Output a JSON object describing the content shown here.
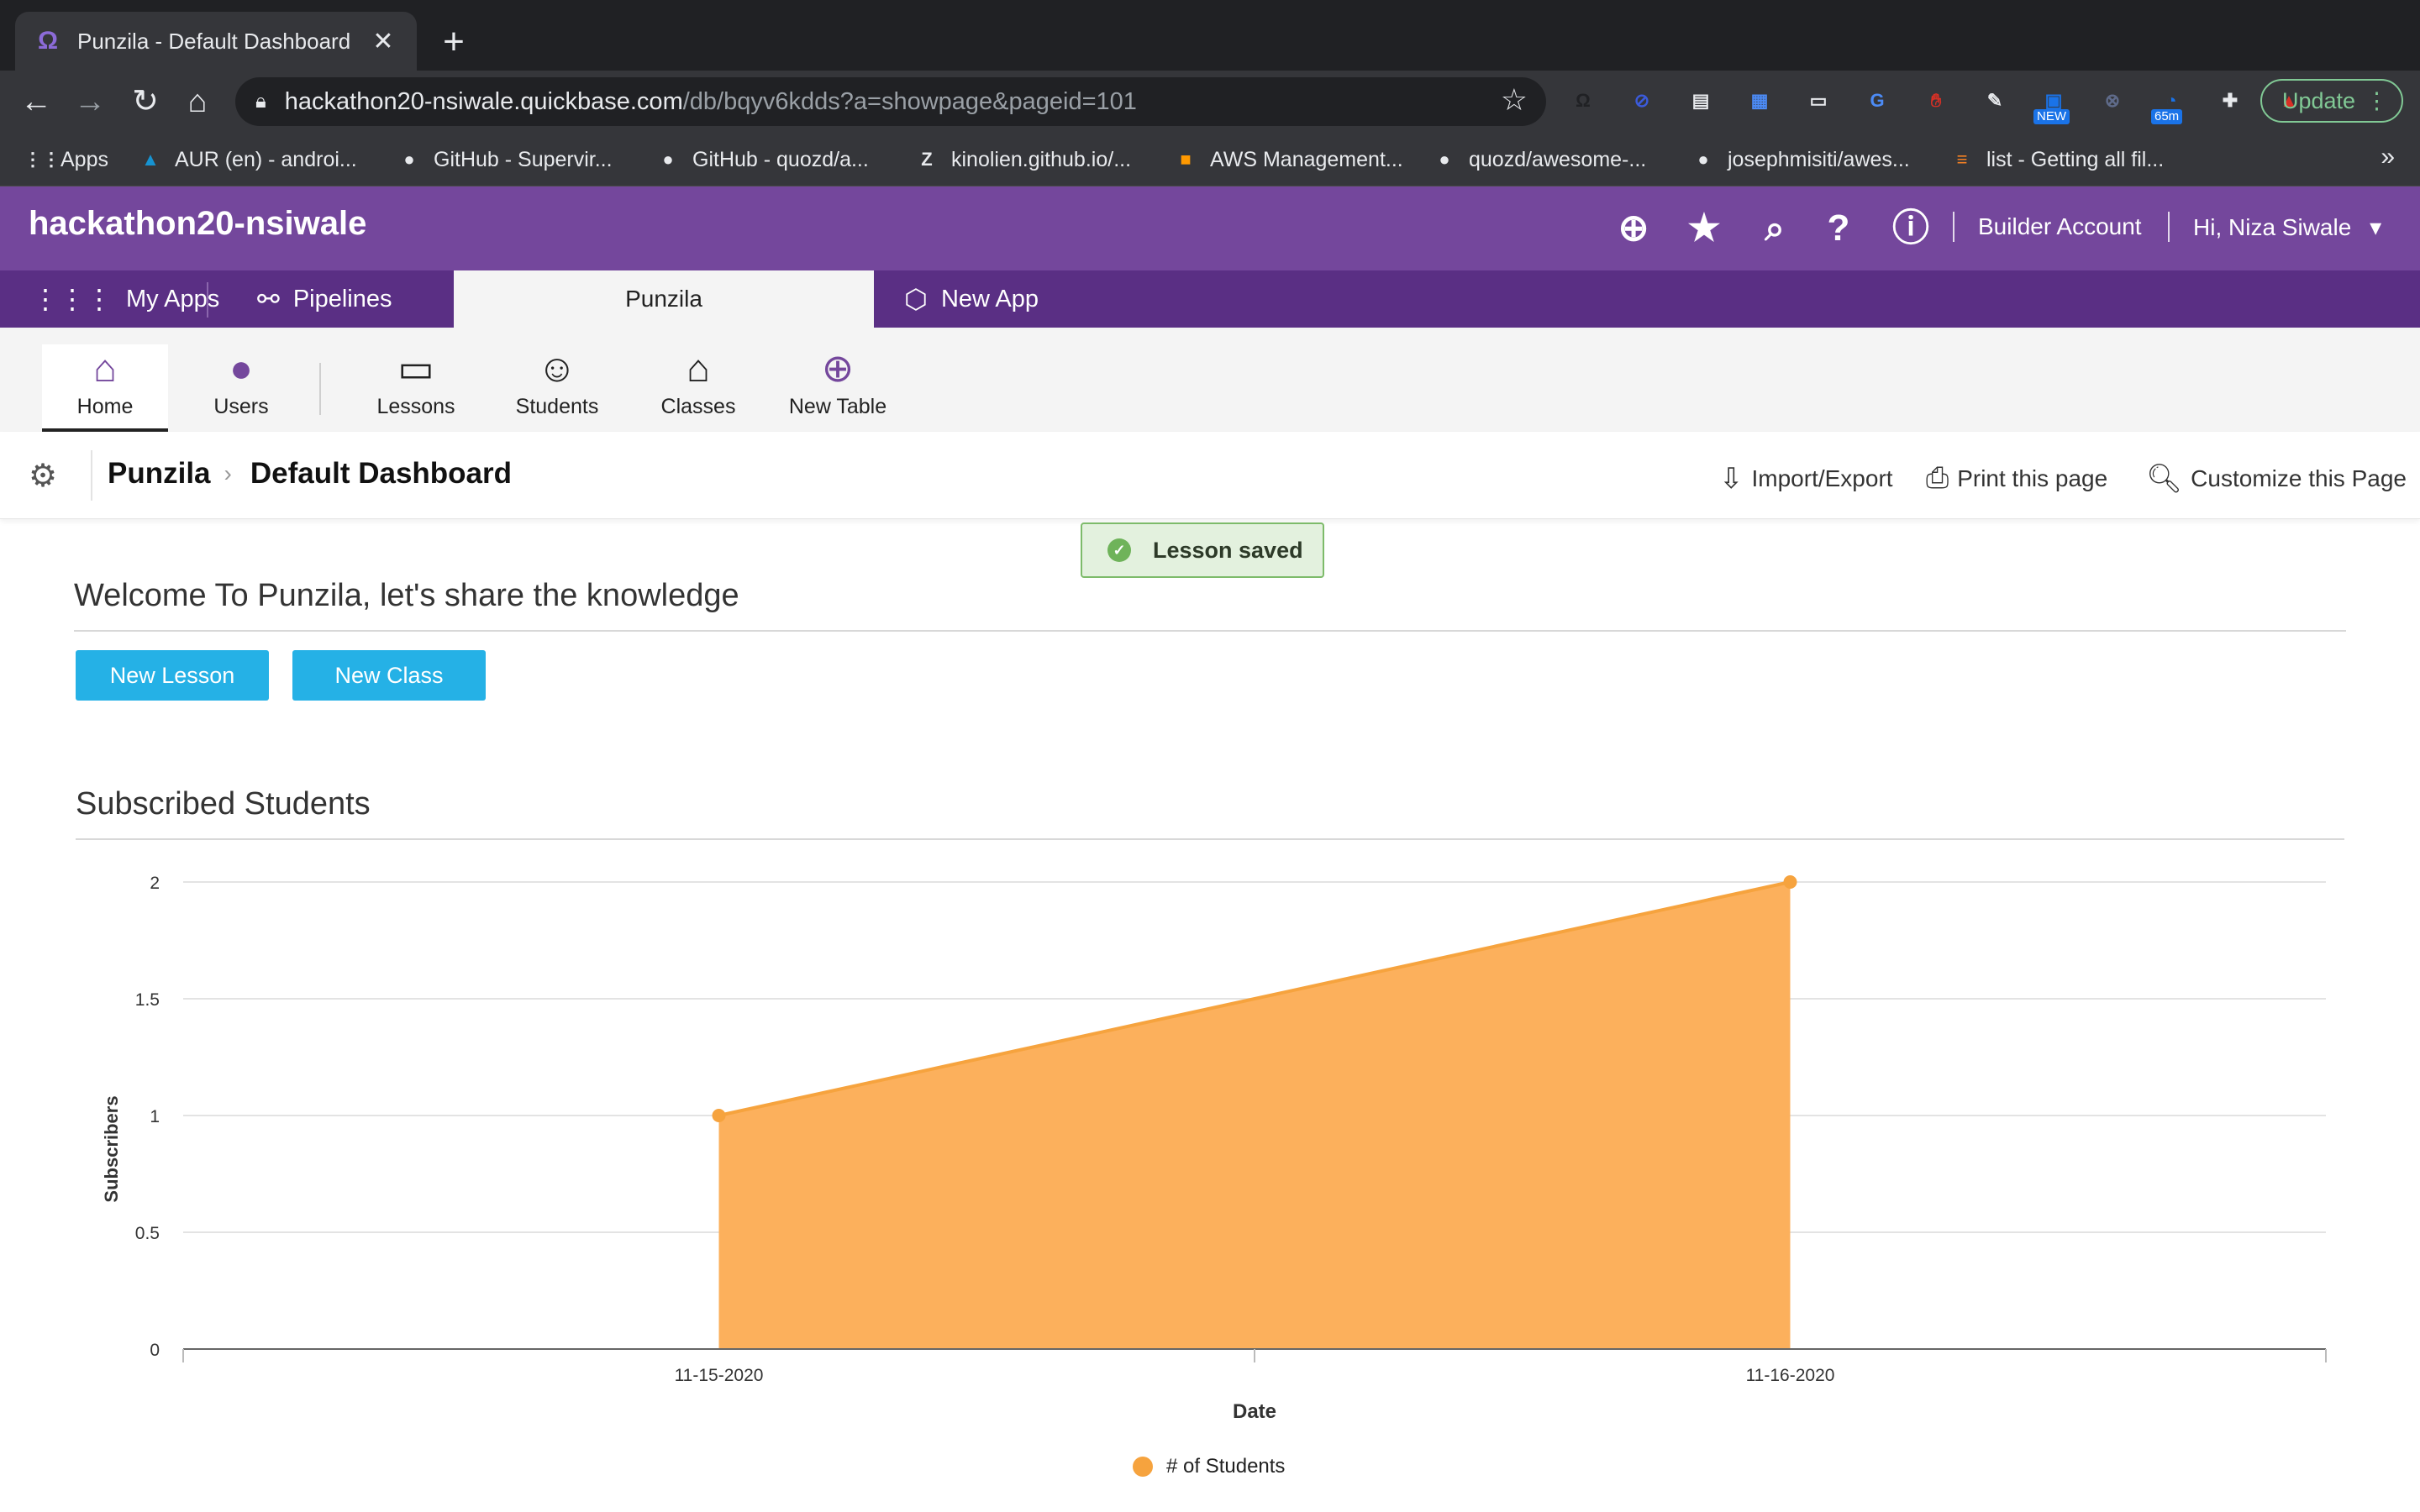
{
  "browser": {
    "tab_title": "Punzila - Default Dashboard",
    "url_host": "hackathon20-nsiwale.quickbase.com",
    "url_path": "/db/bqyv6kdds?a=showpage&pageid=101",
    "update_label": "Update",
    "extensions": [
      {
        "icon": "octocat-icon",
        "label": "",
        "color": "#202124"
      },
      {
        "icon": "block-icon",
        "label": "",
        "color": "#3b5bdb"
      },
      {
        "icon": "slides-icon",
        "label": "",
        "color": "#e8eaed"
      },
      {
        "icon": "grid-icon",
        "label": "",
        "color": "#4c8bf5"
      },
      {
        "icon": "desk-icon",
        "label": "",
        "color": "#e8eaed"
      },
      {
        "icon": "translate-icon",
        "label": "",
        "color": "#4c8bf5"
      },
      {
        "icon": "hand-icon",
        "label": "",
        "color": "#d93025"
      },
      {
        "icon": "pen-icon",
        "label": "",
        "color": "#e8eaed"
      },
      {
        "icon": "news-icon",
        "label": "NEW",
        "color": "#1a73e8"
      },
      {
        "icon": "x-icon",
        "label": "",
        "color": "#5f6b8a"
      },
      {
        "icon": "timer-icon",
        "label": "65m",
        "color": "#1a73e8"
      },
      {
        "icon": "puzzle-icon",
        "label": "",
        "color": "#e8eaed"
      },
      {
        "icon": "rocket-icon",
        "label": "",
        "color": "#d93025"
      }
    ],
    "bookmarks": [
      {
        "label": "Apps",
        "icon": "apps-grid-icon"
      },
      {
        "label": "AUR (en) - androi...",
        "icon": "arch-icon"
      },
      {
        "label": "GitHub - Supervir...",
        "icon": "github-icon"
      },
      {
        "label": "GitHub - quozd/a...",
        "icon": "github-icon"
      },
      {
        "label": "kinolien.github.io/...",
        "icon": "gitzip-icon"
      },
      {
        "label": "AWS Management...",
        "icon": "aws-icon"
      },
      {
        "label": "quozd/awesome-...",
        "icon": "github-icon"
      },
      {
        "label": "josephmisiti/awes...",
        "icon": "github-icon"
      },
      {
        "label": "list - Getting all fil...",
        "icon": "stackoverflow-icon"
      }
    ],
    "bookmarks_more": "»"
  },
  "header": {
    "realm": "hackathon20-nsiwale",
    "builder_account": "Builder Account",
    "greeting": "Hi, Niza Siwale"
  },
  "appnav": {
    "my_apps": "My Apps",
    "pipelines": "Pipelines",
    "active_app": "Punzila",
    "new_app": "New App"
  },
  "tables": [
    {
      "label": "Home",
      "icon": "home-icon",
      "active": true
    },
    {
      "label": "Users",
      "icon": "user-icon"
    },
    {
      "label": "Lessons",
      "icon": "lessons-icon"
    },
    {
      "label": "Students",
      "icon": "students-icon"
    },
    {
      "label": "Classes",
      "icon": "classes-icon"
    },
    {
      "label": "New Table",
      "icon": "plus-circle-icon"
    }
  ],
  "page": {
    "app_crumb": "Punzila",
    "page_name": "Default Dashboard",
    "import_export": "Import/Export",
    "print": "Print this page",
    "customize": "Customize this Page"
  },
  "toast": {
    "message": "Lesson saved"
  },
  "welcome": {
    "title": "Welcome To Punzila, let's share the knowledge",
    "new_lesson": "New Lesson",
    "new_class": "New Class"
  },
  "report": {
    "title": "Subscribed Students"
  },
  "colors": {
    "brand_purple": "#74479c",
    "nav_purple": "#5a2f84",
    "button_blue": "#25b1e6",
    "series_orange": "#f6a33e"
  },
  "chart_data": {
    "type": "area",
    "x": [
      "11-15-2020",
      "11-16-2020"
    ],
    "series": [
      {
        "name": "# of Students",
        "values": [
          1,
          2
        ]
      }
    ],
    "xlabel": "Date",
    "ylabel": "Subscribers",
    "ylim": [
      0,
      2
    ],
    "yticks": [
      "0",
      "0.5",
      "1",
      "1.5",
      "2"
    ],
    "grid": true,
    "legend": "bottom"
  }
}
